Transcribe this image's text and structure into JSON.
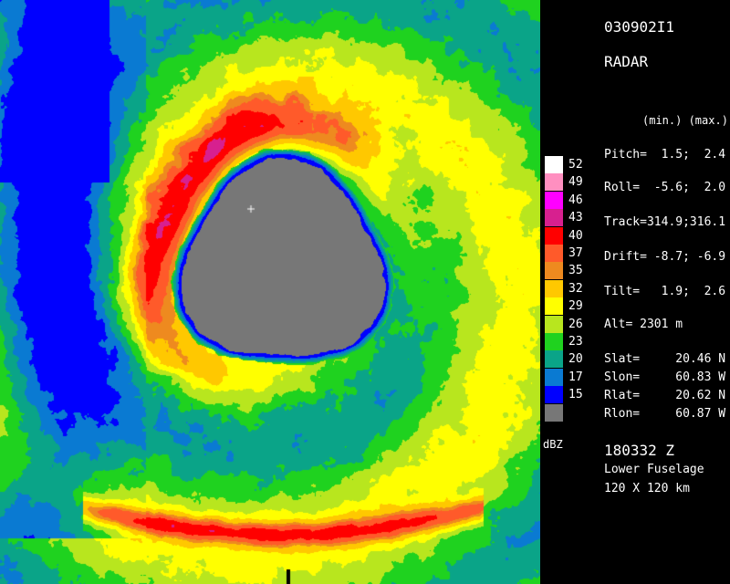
{
  "header": {
    "id": "030902I1",
    "type": "RADAR"
  },
  "legend": {
    "levels": [
      {
        "label": "52",
        "color": "#ffffff"
      },
      {
        "label": "49",
        "color": "#ff8fc0"
      },
      {
        "label": "46",
        "color": "#ff00ff"
      },
      {
        "label": "43",
        "color": "#d7208f"
      },
      {
        "label": "40",
        "color": "#ff0000"
      },
      {
        "label": "37",
        "color": "#ff5a2a"
      },
      {
        "label": "35",
        "color": "#ee8a1f"
      },
      {
        "label": "32",
        "color": "#ffc800"
      },
      {
        "label": "29",
        "color": "#ffff00"
      },
      {
        "label": "26",
        "color": "#b8e61e"
      },
      {
        "label": "23",
        "color": "#1fd21f"
      },
      {
        "label": "20",
        "color": "#0aa488"
      },
      {
        "label": "17",
        "color": "#0a7ad2"
      },
      {
        "label": "15",
        "color": "#0000ff"
      },
      {
        "label": "",
        "color": "#777777"
      }
    ],
    "unit": "dBZ"
  },
  "stats": {
    "header": "(min.) (max.)",
    "pitch": "Pitch=  1.5;  2.4",
    "roll": "Roll=  -5.6;  2.0",
    "track": "Track=314.9;316.1",
    "drift": "Drift= -8.7; -6.9",
    "tilt": "Tilt=   1.9;  2.6",
    "alt": "Alt= 2301 m",
    "slat": "Slat=     20.46 N",
    "slon": "Slon=     60.83 W",
    "rlat": "Rlat=     20.62 N",
    "rlon": "Rlon=     60.87 W"
  },
  "footer": {
    "time": "180332 Z",
    "antenna": "Lower Fuselage",
    "extent": "120 X 120 km"
  }
}
